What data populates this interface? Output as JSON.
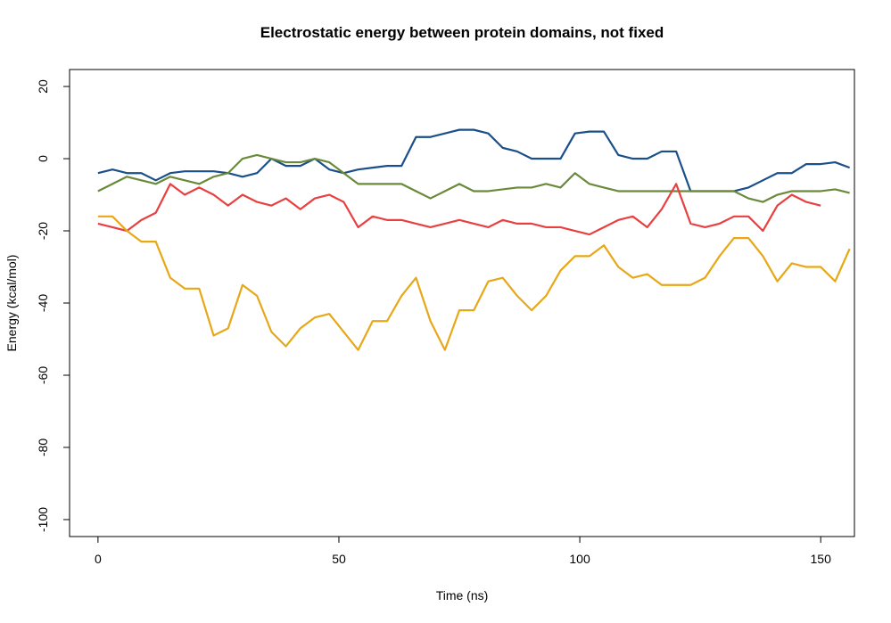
{
  "chart_data": {
    "type": "line",
    "title": "Electrostatic energy between protein domains, not fixed",
    "x_label": "Time (ns)",
    "y_label": "Energy (kcal/mol)",
    "xlim": [
      -5.9,
      157
    ],
    "ylim": [
      -104.7,
      24.7
    ],
    "xticks": [
      0,
      50,
      100,
      150
    ],
    "yticks": [
      -100,
      -80,
      -60,
      -40,
      -20,
      0,
      20
    ],
    "x": [
      0,
      3,
      6,
      9,
      12,
      15,
      18,
      21,
      24,
      27,
      30,
      33,
      36,
      39,
      42,
      45,
      48,
      51,
      54,
      57,
      60,
      63,
      66,
      69,
      72,
      75,
      78,
      81,
      84,
      87,
      90,
      93,
      96,
      99,
      102,
      105,
      108,
      111,
      114,
      117,
      120,
      123,
      126,
      129,
      132,
      135,
      138,
      141,
      144,
      147,
      150,
      153,
      156
    ],
    "series": [
      {
        "color": "#1a4f8a",
        "values": [
          -4,
          -3,
          -4,
          -4,
          -6,
          -4,
          -3.5,
          -3.5,
          -3.5,
          -4,
          -5,
          -4,
          0,
          -2,
          -2,
          0,
          -3,
          -4,
          -3,
          -2.5,
          -2,
          -2,
          6,
          6,
          7,
          8,
          8,
          7,
          3,
          2,
          0,
          0,
          0,
          7,
          7.5,
          7.5,
          1,
          0,
          0,
          2,
          2,
          -9,
          -9,
          -9,
          -9,
          -8,
          -6,
          -4,
          -4,
          -1.5,
          -1.5,
          -1,
          -2.5
        ]
      },
      {
        "color": "#6a8a3a",
        "values": [
          -9,
          -7,
          -5,
          -6,
          -7,
          -5,
          -6,
          -7,
          -5,
          -4,
          0,
          1,
          0,
          -1,
          -1,
          0,
          -1,
          -4,
          -7,
          -7,
          -7,
          -7,
          -9,
          -11,
          -9,
          -7,
          -9,
          -9,
          -8.5,
          -8,
          -8,
          -7,
          -8,
          -4,
          -7,
          -8,
          -9,
          -9,
          -9,
          -9,
          -9,
          -9,
          -9,
          -9,
          -9,
          -11,
          -12,
          -10,
          -9,
          -9,
          -9,
          -8.5,
          -9.5
        ]
      },
      {
        "color": "#e84040",
        "values": [
          -18,
          -19,
          -20,
          -17,
          -15,
          -7,
          -10,
          -8,
          -10,
          -13,
          -10,
          -12,
          -13,
          -11,
          -14,
          -11,
          -10,
          -12,
          -19,
          -16,
          -17,
          -17,
          -18,
          -19,
          -18,
          -17,
          -18,
          -19,
          -17,
          -18,
          -18,
          -19,
          -19,
          -20,
          -21,
          -19,
          -17,
          -16,
          -19,
          -14,
          -7,
          -18,
          -19,
          -18,
          -16,
          -16,
          -20,
          -13,
          -10,
          -12,
          -13,
          null,
          null
        ]
      },
      {
        "color": "#e6a817",
        "values": [
          -16,
          -16,
          -20,
          -23,
          -23,
          -33,
          -36,
          -36,
          -49,
          -47,
          -35,
          -38,
          -48,
          -52,
          -47,
          -44,
          -43,
          -48,
          -53,
          -45,
          -45,
          -38,
          -33,
          -45,
          -53,
          -42,
          -42,
          -34,
          -33,
          -38,
          -42,
          -38,
          -31,
          -27,
          -27,
          -24,
          -30,
          -33,
          -32,
          -35,
          -35,
          -35,
          -33,
          -27,
          -22,
          -22,
          -27,
          -34,
          -29,
          -30,
          -30,
          -34,
          -25
        ]
      }
    ]
  }
}
